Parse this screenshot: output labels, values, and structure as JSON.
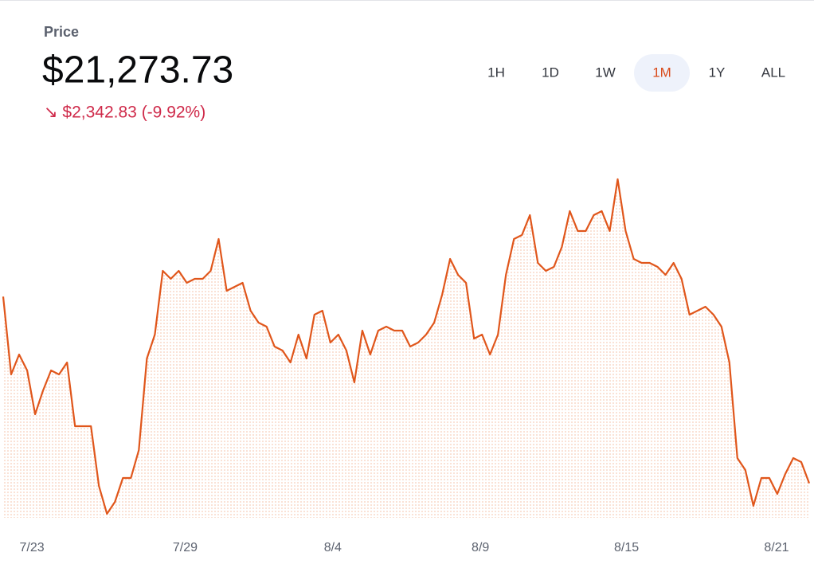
{
  "header": {
    "label": "Price",
    "price": "$21,273.73",
    "change": "↘ $2,342.83 (-9.92%)"
  },
  "timeframes": {
    "options": [
      "1H",
      "1D",
      "1W",
      "1M",
      "1Y",
      "ALL"
    ],
    "active": "1M"
  },
  "chart_data": {
    "type": "line",
    "color": "#e0561b",
    "values": [
      23616.56,
      22640,
      22890,
      22690,
      22140,
      22440,
      22690,
      22640,
      22790,
      21990,
      21990,
      21990,
      21240,
      20890,
      21040,
      21340,
      21340,
      21690,
      22840,
      23140,
      23940,
      23840,
      23940,
      23790,
      23840,
      23840,
      23940,
      24340,
      23690,
      23740,
      23790,
      23440,
      23290,
      23240,
      22990,
      22940,
      22790,
      23140,
      22840,
      23390,
      23440,
      23040,
      23140,
      22940,
      22540,
      23190,
      22890,
      23190,
      23240,
      23190,
      23190,
      22990,
      23040,
      23140,
      23290,
      23640,
      24090,
      23890,
      23790,
      23090,
      23140,
      22890,
      23140,
      23890,
      24340,
      24390,
      24640,
      24040,
      23940,
      23990,
      24240,
      24690,
      24440,
      24440,
      24640,
      24690,
      24440,
      25090,
      24440,
      24090,
      24040,
      24040,
      23990,
      23890,
      24040,
      23840,
      23390,
      23440,
      23490,
      23390,
      23240,
      22790,
      21590,
      21440,
      20990,
      21340,
      21340,
      21140,
      21390,
      21590,
      21540,
      21273.73
    ],
    "xlim": [
      0,
      101
    ],
    "xticks": [
      {
        "value": 3.6,
        "label": "7/23"
      },
      {
        "value": 22.8,
        "label": "7/29"
      },
      {
        "value": 41.3,
        "label": "8/4"
      },
      {
        "value": 59.8,
        "label": "8/9"
      },
      {
        "value": 78.1,
        "label": "8/15"
      },
      {
        "value": 96.9,
        "label": "8/21"
      }
    ],
    "ylim": [
      20840,
      25340
    ]
  }
}
